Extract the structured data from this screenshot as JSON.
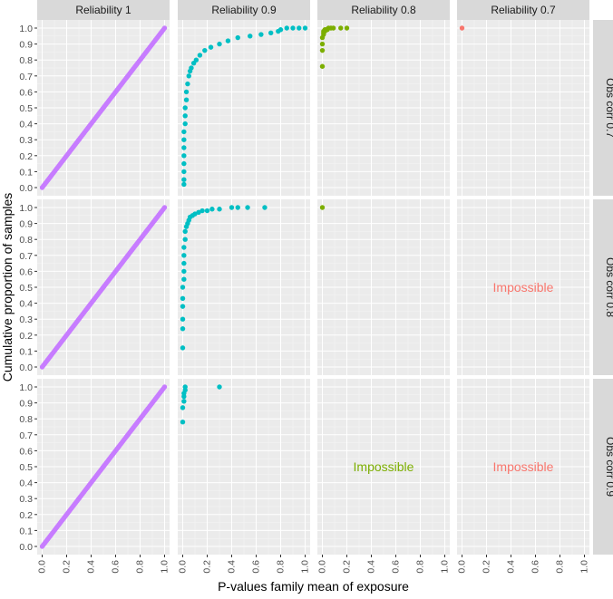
{
  "chart_data": {
    "type": "scatter",
    "plot_kind": "faceted cumulative distribution (ECDF points)",
    "xlabel": "P-values family mean of exposure",
    "ylabel": "Cumulative proportion of samples",
    "xlim": [
      0.0,
      1.0
    ],
    "ylim": [
      0.0,
      1.0
    ],
    "x_ticks": [
      "0.0",
      "0.2",
      "0.4",
      "0.6",
      "0.8",
      "1.0"
    ],
    "y_ticks": [
      "0.0",
      "0.1",
      "0.2",
      "0.3",
      "0.4",
      "0.5",
      "0.6",
      "0.7",
      "0.8",
      "0.9",
      "1.0"
    ],
    "grid": true,
    "column_facets": [
      "Reliability 1",
      "Reliability 0.9",
      "Reliability 0.8",
      "Reliability 0.7"
    ],
    "row_facets": [
      "Obs corr 0.7",
      "Obs corr 0.8",
      "Obs corr 0.9"
    ],
    "series_colors": {
      "Reliability 1": "#C77CFF",
      "Reliability 0.9": "#00BFC4",
      "Reliability 0.8": "#7CAE00",
      "Reliability 0.7": "#F8766D"
    },
    "impossible_label": "Impossible",
    "panels": [
      {
        "row": "Obs corr 0.7",
        "col": "Reliability 1",
        "kind": "uniform_cdf",
        "n": 110
      },
      {
        "row": "Obs corr 0.7",
        "col": "Reliability 0.9",
        "kind": "points",
        "x": [
          0.01,
          0.01,
          0.01,
          0.01,
          0.01,
          0.01,
          0.01,
          0.01,
          0.02,
          0.02,
          0.02,
          0.03,
          0.03,
          0.04,
          0.05,
          0.06,
          0.07,
          0.09,
          0.11,
          0.14,
          0.18,
          0.23,
          0.3,
          0.37,
          0.45,
          0.55,
          0.64,
          0.72,
          0.78,
          0.8,
          0.85,
          0.9,
          0.95,
          1.0
        ],
        "y": [
          0.02,
          0.05,
          0.1,
          0.15,
          0.2,
          0.25,
          0.3,
          0.35,
          0.4,
          0.45,
          0.5,
          0.55,
          0.6,
          0.65,
          0.7,
          0.73,
          0.75,
          0.78,
          0.8,
          0.83,
          0.86,
          0.88,
          0.9,
          0.92,
          0.94,
          0.95,
          0.96,
          0.97,
          0.98,
          0.99,
          1.0,
          1.0,
          1.0,
          1.0
        ]
      },
      {
        "row": "Obs corr 0.7",
        "col": "Reliability 0.8",
        "kind": "points",
        "x": [
          0.0,
          0.0,
          0.0,
          0.0,
          0.01,
          0.01,
          0.01,
          0.02,
          0.02,
          0.03,
          0.04,
          0.05,
          0.07,
          0.09,
          0.15,
          0.2
        ],
        "y": [
          0.76,
          0.86,
          0.9,
          0.94,
          0.96,
          0.97,
          0.98,
          0.98,
          0.99,
          0.99,
          0.99,
          1.0,
          1.0,
          1.0,
          1.0,
          1.0
        ]
      },
      {
        "row": "Obs corr 0.7",
        "col": "Reliability 0.7",
        "kind": "points",
        "x": [
          0.0
        ],
        "y": [
          1.0
        ]
      },
      {
        "row": "Obs corr 0.8",
        "col": "Reliability 1",
        "kind": "uniform_cdf",
        "n": 110
      },
      {
        "row": "Obs corr 0.8",
        "col": "Reliability 0.9",
        "kind": "points",
        "x": [
          0.0,
          0.0,
          0.0,
          0.0,
          0.0,
          0.0,
          0.01,
          0.01,
          0.01,
          0.01,
          0.01,
          0.02,
          0.02,
          0.03,
          0.04,
          0.05,
          0.06,
          0.08,
          0.1,
          0.13,
          0.16,
          0.2,
          0.24,
          0.3,
          0.4,
          0.45,
          0.53,
          0.67
        ],
        "y": [
          0.12,
          0.24,
          0.3,
          0.38,
          0.43,
          0.5,
          0.55,
          0.6,
          0.65,
          0.7,
          0.75,
          0.8,
          0.85,
          0.88,
          0.9,
          0.92,
          0.94,
          0.95,
          0.96,
          0.97,
          0.98,
          0.98,
          0.99,
          0.99,
          1.0,
          1.0,
          1.0,
          1.0
        ]
      },
      {
        "row": "Obs corr 0.8",
        "col": "Reliability 0.8",
        "kind": "points",
        "x": [
          0.0
        ],
        "y": [
          1.0
        ]
      },
      {
        "row": "Obs corr 0.8",
        "col": "Reliability 0.7",
        "kind": "impossible"
      },
      {
        "row": "Obs corr 0.9",
        "col": "Reliability 1",
        "kind": "uniform_cdf",
        "n": 110
      },
      {
        "row": "Obs corr 0.9",
        "col": "Reliability 0.9",
        "kind": "points",
        "x": [
          0.0,
          0.0,
          0.01,
          0.01,
          0.01,
          0.02,
          0.02,
          0.3
        ],
        "y": [
          0.78,
          0.87,
          0.91,
          0.94,
          0.96,
          0.98,
          1.0,
          1.0
        ]
      },
      {
        "row": "Obs corr 0.9",
        "col": "Reliability 0.8",
        "kind": "impossible"
      },
      {
        "row": "Obs corr 0.9",
        "col": "Reliability 0.7",
        "kind": "impossible"
      }
    ]
  }
}
